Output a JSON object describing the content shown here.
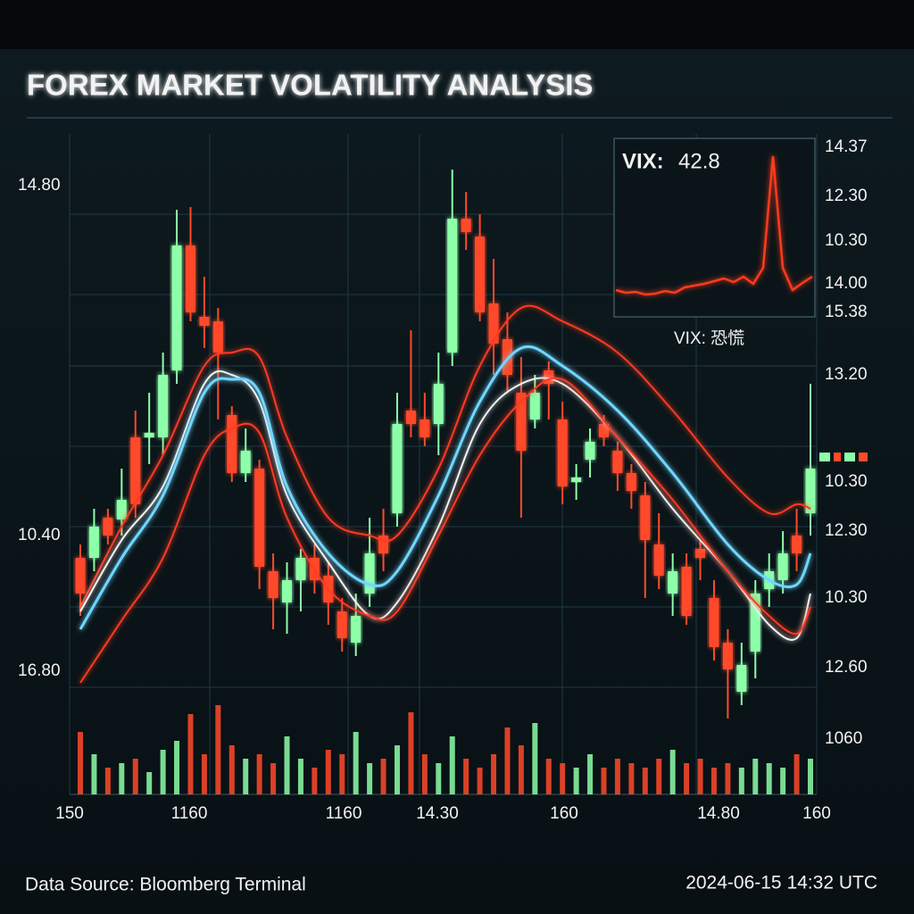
{
  "title": "FOREX MARKET VOLATILITY ANALYSIS",
  "chart_data": {
    "type": "candlestick",
    "ylim": [
      0,
      740
    ],
    "up_color": "#8dffa8",
    "down_color": "#ff4a2a",
    "candles": {
      "open": [
        265,
        265,
        310,
        308,
        400,
        400,
        400,
        475,
        615,
        535,
        530,
        425,
        360,
        365,
        250,
        215,
        240,
        265,
        245,
        205,
        170,
        225,
        290,
        315,
        430,
        420,
        415,
        495,
        645,
        625,
        550,
        510,
        450,
        420,
        475,
        420,
        350,
        375,
        415,
        385,
        360,
        335,
        280,
        225,
        255,
        275,
        220,
        170,
        115,
        160,
        230,
        240,
        290,
        315
      ],
      "close": [
        225,
        300,
        290,
        330,
        325,
        405,
        470,
        615,
        540,
        525,
        495,
        360,
        385,
        255,
        220,
        240,
        265,
        240,
        215,
        175,
        200,
        270,
        270,
        415,
        415,
        400,
        460,
        645,
        630,
        540,
        505,
        470,
        385,
        450,
        460,
        345,
        355,
        395,
        400,
        360,
        340,
        285,
        245,
        250,
        200,
        265,
        165,
        140,
        145,
        225,
        250,
        270,
        270,
        365
      ],
      "high": [
        280,
        320,
        320,
        365,
        430,
        450,
        495,
        655,
        658,
        580,
        545,
        435,
        410,
        375,
        270,
        260,
        275,
        280,
        260,
        220,
        225,
        310,
        320,
        450,
        520,
        450,
        495,
        700,
        675,
        650,
        600,
        540,
        490,
        470,
        485,
        440,
        370,
        410,
        425,
        395,
        370,
        350,
        315,
        270,
        270,
        285,
        240,
        185,
        170,
        240,
        270,
        295,
        320,
        460
      ],
      "low": [
        200,
        250,
        280,
        290,
        310,
        370,
        380,
        460,
        530,
        500,
        420,
        350,
        350,
        230,
        185,
        180,
        205,
        225,
        190,
        160,
        155,
        210,
        250,
        300,
        400,
        390,
        380,
        480,
        610,
        530,
        470,
        450,
        310,
        410,
        420,
        325,
        330,
        355,
        390,
        340,
        320,
        220,
        230,
        200,
        190,
        240,
        150,
        85,
        100,
        130,
        210,
        225,
        250,
        290
      ]
    },
    "overlays": [
      {
        "color": "#ff3a22",
        "x": [
          0,
          3,
          6,
          9,
          11,
          13,
          15,
          18,
          21,
          23,
          26,
          29,
          32,
          35,
          39,
          43,
          47,
          50,
          52,
          53
        ],
        "values": [
          210,
          300,
          380,
          480,
          495,
          490,
          400,
          310,
          290,
          290,
          365,
          480,
          545,
          530,
          495,
          430,
          355,
          315,
          325,
          320
        ]
      },
      {
        "color": "#f4f4f4",
        "x": [
          0,
          3,
          6,
          9,
          11,
          13,
          15,
          18,
          21,
          23,
          26,
          29,
          32,
          35,
          39,
          43,
          47,
          50,
          52,
          53
        ],
        "values": [
          205,
          285,
          345,
          460,
          470,
          440,
          335,
          260,
          200,
          215,
          300,
          415,
          460,
          460,
          400,
          320,
          250,
          190,
          175,
          225
        ]
      },
      {
        "color": "#6fd6ff",
        "x": [
          0,
          3,
          6,
          9,
          11,
          13,
          15,
          18,
          21,
          23,
          26,
          29,
          32,
          35,
          39,
          43,
          47,
          50,
          52,
          53
        ],
        "values": [
          185,
          265,
          335,
          450,
          465,
          450,
          345,
          270,
          235,
          250,
          335,
          440,
          500,
          480,
          430,
          360,
          280,
          240,
          235,
          270
        ]
      },
      {
        "color": "#ff3a22",
        "x": [
          0,
          3,
          6,
          9,
          11,
          13,
          15,
          18,
          21,
          23,
          26,
          29,
          32,
          35,
          39,
          43,
          47,
          50,
          52,
          53
        ],
        "values": [
          125,
          195,
          265,
          380,
          410,
          405,
          310,
          230,
          200,
          205,
          290,
          380,
          440,
          465,
          400,
          330,
          250,
          200,
          180,
          210
        ]
      }
    ],
    "volume": [
      70,
      45,
      30,
      35,
      40,
      25,
      50,
      60,
      90,
      45,
      100,
      55,
      40,
      45,
      35,
      65,
      40,
      30,
      50,
      45,
      70,
      35,
      40,
      55,
      92,
      45,
      35,
      65,
      40,
      30,
      45,
      75,
      55,
      80,
      40,
      35,
      30,
      45,
      30,
      40,
      35,
      30,
      40,
      50,
      35,
      40,
      30,
      35,
      30,
      40,
      35,
      30,
      45,
      40
    ],
    "y2lim": [
      0,
      100
    ],
    "left_labels": [
      "14.80",
      "10.40",
      "16.80"
    ],
    "right_labels": [
      "14.37",
      "12.30",
      "10.30",
      "14.00",
      "15.38",
      "13.20",
      "10.30",
      "12.30",
      "10.30",
      "12.60",
      "1060"
    ],
    "x_labels": [
      "150",
      "1160",
      "1160",
      "14.30",
      "160",
      "14.80",
      "160"
    ],
    "inset": {
      "title": "VIX:",
      "value_label": "42.8",
      "caption": "VIX: 恐慌",
      "color": "#ff3b1f",
      "ylim": [
        0,
        200
      ],
      "values": [
        30,
        27,
        28,
        25,
        26,
        29,
        27,
        33,
        35,
        37,
        40,
        43,
        39,
        45,
        37,
        55,
        180,
        55,
        30,
        38,
        45
      ]
    }
  },
  "footer": {
    "source": "Data Source: Bloomberg Terminal",
    "timestamp": "2024-06-15 14:32 UTC"
  }
}
